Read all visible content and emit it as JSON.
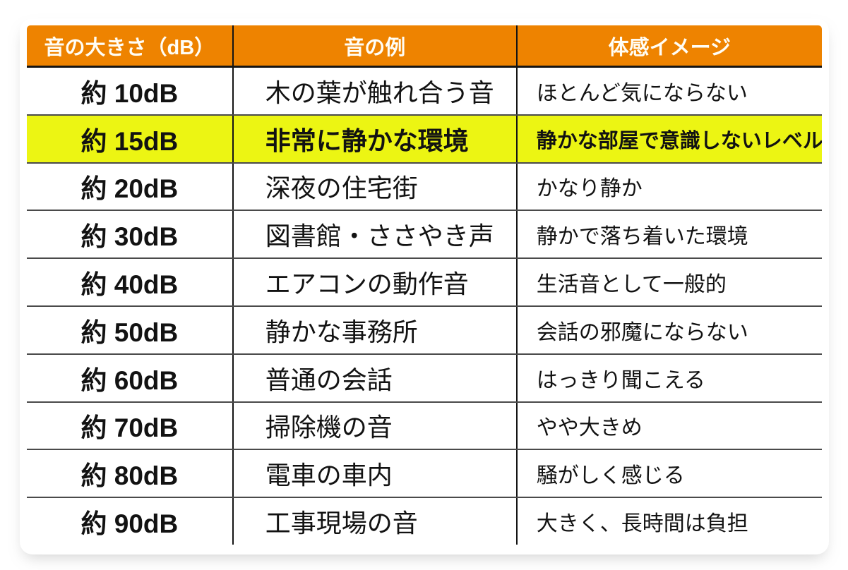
{
  "colors": {
    "page_bg": "#ffffff",
    "frame_orange": "#f1790a",
    "frame_amber": "#fbab0c",
    "frame_yellow": "#ffc60a",
    "header_bg": "#ee8300",
    "header_text": "#fffdf5",
    "highlight_bg": "#ecf513",
    "body_text": "#121212",
    "grid_line": "#4a4a4a"
  },
  "chart_data": {
    "type": "table",
    "columns": [
      "音の大きさ（dB）",
      "音の例",
      "体感イメージ"
    ],
    "rows": [
      [
        "約 10dB",
        "木の葉が触れ合う音",
        "ほとんど気にならない"
      ],
      [
        "約 15dB",
        "非常に静かな環境",
        "静かな部屋で意識しないレベル"
      ],
      [
        "約 20dB",
        "深夜の住宅街",
        "かなり静か"
      ],
      [
        "約 30dB",
        "図書館・ささやき声",
        "静かで落ち着いた環境"
      ],
      [
        "約 40dB",
        "エアコンの動作音",
        "生活音として一般的"
      ],
      [
        "約 50dB",
        "静かな事務所",
        "会話の邪魔にならない"
      ],
      [
        "約 60dB",
        "普通の会話",
        "はっきり聞こえる"
      ],
      [
        "約 70dB",
        "掃除機の音",
        "やや大きめ"
      ],
      [
        "約 80dB",
        "電車の車内",
        "騒がしく感じる"
      ],
      [
        "約 90dB",
        "工事現場の音",
        "大きく、長時間は負担"
      ]
    ],
    "highlighted_row_index": 1
  }
}
